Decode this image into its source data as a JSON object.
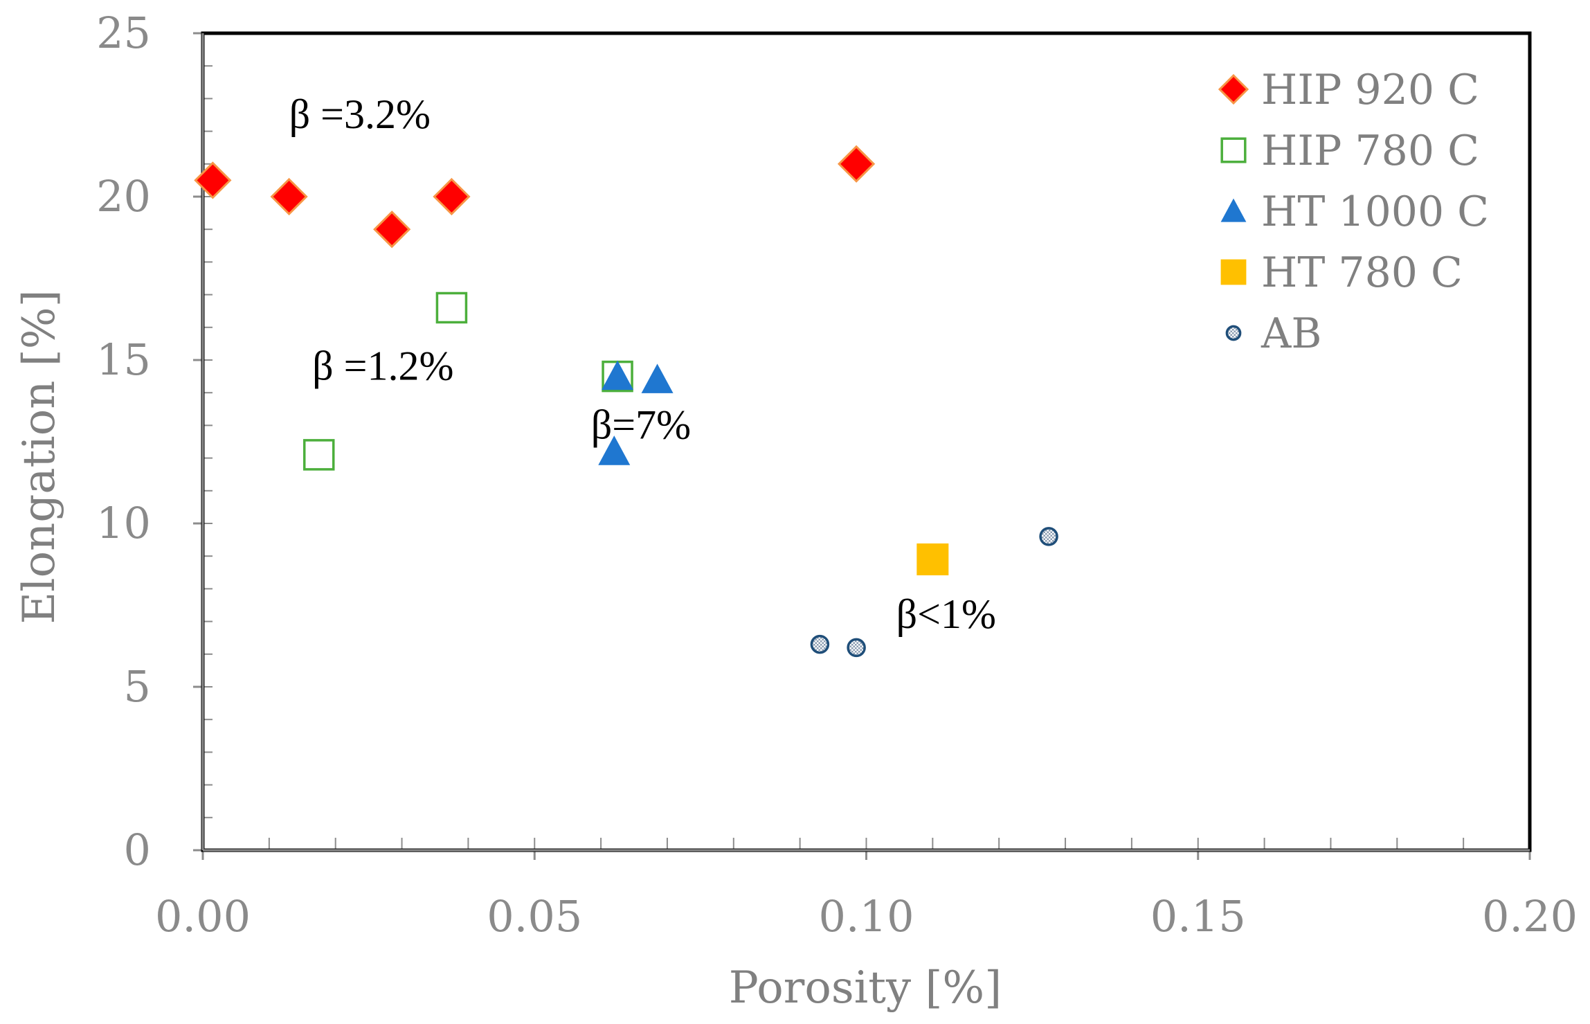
{
  "chart_data": {
    "type": "scatter",
    "title": "",
    "xlabel": "Porosity [%]",
    "ylabel": "Elongation [%]",
    "xlim": [
      0,
      0.2
    ],
    "ylim": [
      0,
      25
    ],
    "x_ticks": [
      "0.00",
      "0.05",
      "0.10",
      "0.15",
      "0.20"
    ],
    "y_ticks": [
      "0",
      "5",
      "10",
      "15",
      "20",
      "25"
    ],
    "legend_position": "top-right",
    "series": [
      {
        "name": "HIP 920 C",
        "marker": "diamond",
        "color": "#ff0000",
        "edge": "#f79646",
        "points": [
          {
            "x": 0.0015,
            "y": 20.5
          },
          {
            "x": 0.013,
            "y": 20.0
          },
          {
            "x": 0.0285,
            "y": 19.0
          },
          {
            "x": 0.0375,
            "y": 20.0
          },
          {
            "x": 0.0985,
            "y": 21.0
          }
        ]
      },
      {
        "name": "HIP 780 C",
        "marker": "square-open",
        "color": "#4caf3c",
        "points": [
          {
            "x": 0.0175,
            "y": 12.1
          },
          {
            "x": 0.0375,
            "y": 16.6
          },
          {
            "x": 0.0625,
            "y": 14.5
          }
        ]
      },
      {
        "name": "HT 1000 C",
        "marker": "triangle",
        "color": "#1f77d0",
        "points": [
          {
            "x": 0.0625,
            "y": 14.5
          },
          {
            "x": 0.0685,
            "y": 14.4
          },
          {
            "x": 0.062,
            "y": 12.2
          }
        ]
      },
      {
        "name": "HT 780 C",
        "marker": "square",
        "color": "#ffc000",
        "points": [
          {
            "x": 0.11,
            "y": 8.9
          }
        ]
      },
      {
        "name": "AB",
        "marker": "circle-dotted",
        "color": "#1f4e79",
        "points": [
          {
            "x": 0.093,
            "y": 6.3
          },
          {
            "x": 0.0985,
            "y": 6.2
          },
          {
            "x": 0.1275,
            "y": 9.6
          }
        ]
      }
    ],
    "annotations": [
      {
        "text": "β =3.2%",
        "x": 0.013,
        "y": 22.1
      },
      {
        "text": "β =1.2%",
        "x": 0.0165,
        "y": 14.4
      },
      {
        "text": "β=7%",
        "x": 0.0585,
        "y": 12.6
      },
      {
        "text": "β<1%",
        "x": 0.1045,
        "y": 6.8
      }
    ]
  }
}
